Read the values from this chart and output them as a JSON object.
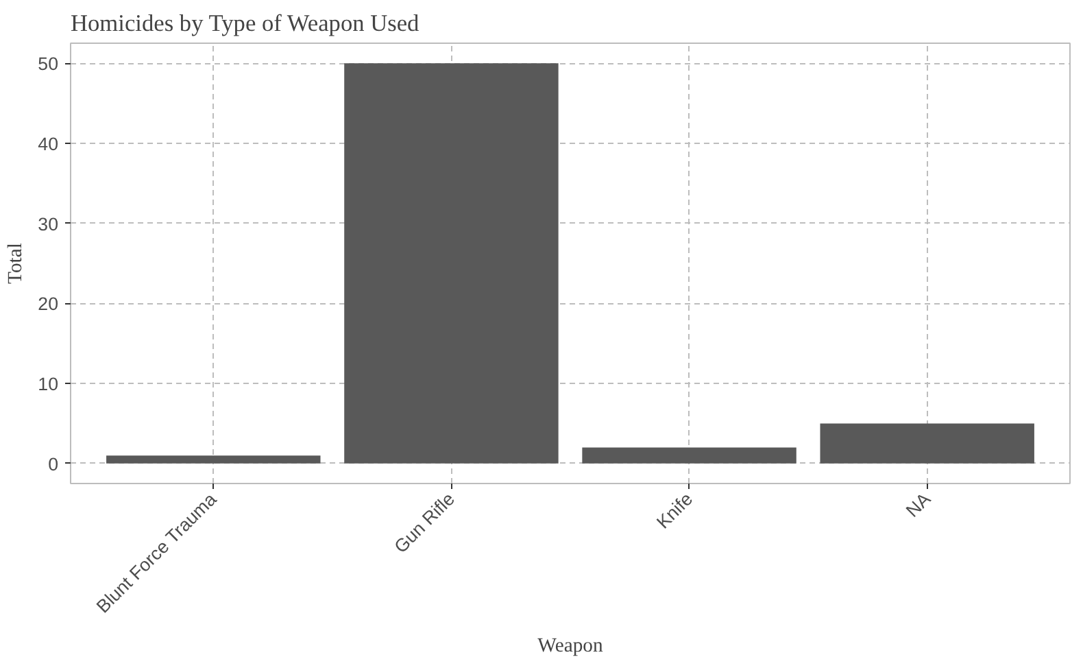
{
  "chart_data": {
    "type": "bar",
    "title": "Homicides by Type of Weapon Used",
    "xlabel": "Weapon",
    "ylabel": "Total",
    "categories": [
      "Blunt Force Trauma",
      "Gun Rifle",
      "Knife",
      "NA"
    ],
    "values": [
      1,
      50,
      2,
      5
    ],
    "color": "#595959",
    "ylim": [
      -2.5,
      52.5
    ],
    "yticks": [
      0,
      10,
      20,
      30,
      40,
      50
    ],
    "grid": true,
    "line_style": "dashed"
  }
}
